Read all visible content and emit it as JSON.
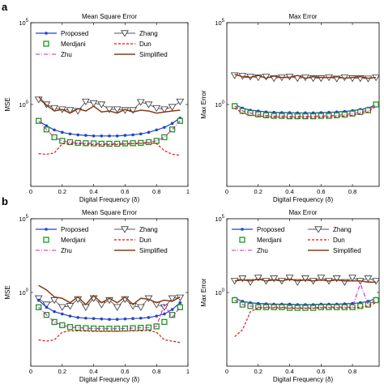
{
  "panel_labels": [
    "a",
    "b"
  ],
  "colors": {
    "proposed": "#2343c6",
    "zhang": "#555555",
    "merdjani": "#1a9a1a",
    "dun": "#e01010",
    "zhu": "#d020d0",
    "simplified": "#8b3a14"
  },
  "chart_data": [
    {
      "type": "line",
      "title": "Mean Square Error",
      "xlabel": "Digital Frequency (δ)",
      "ylabel": "MSE",
      "yscale": "log",
      "xlim": [
        0,
        1
      ],
      "ylim": [
        1e-05,
        100000.0
      ],
      "xticks": [
        "0",
        "0.2",
        "0.4",
        "0.6",
        "0.8",
        "1"
      ],
      "yticks": [
        "10^0",
        "10^5"
      ],
      "legend": [
        "Proposed",
        "Zhang",
        "Merdjani",
        "Dun",
        "Zhu",
        "Simplified"
      ],
      "legend_position": "top",
      "grid": false,
      "x": [
        0.05,
        0.1,
        0.15,
        0.2,
        0.25,
        0.3,
        0.35,
        0.4,
        0.45,
        0.5,
        0.55,
        0.6,
        0.65,
        0.7,
        0.75,
        0.8,
        0.85,
        0.9,
        0.95
      ],
      "series": [
        {
          "name": "Zhang",
          "values": [
            2.0,
            1.0,
            0.6,
            0.5,
            0.45,
            0.4,
            1.5,
            1.2,
            1.0,
            0.5,
            0.5,
            0.45,
            0.45,
            1.4,
            1.0,
            0.6,
            0.5,
            0.7,
            1.5
          ]
        },
        {
          "name": "Simplified",
          "values": [
            3.0,
            0.9,
            0.4,
            0.5,
            0.3,
            0.55,
            0.4,
            0.8,
            0.35,
            0.4,
            0.3,
            0.5,
            0.35,
            0.45,
            0.4,
            0.3,
            0.35,
            0.4,
            0.45
          ]
        },
        {
          "name": "Proposed",
          "values": [
            0.1,
            0.05,
            0.028,
            0.02,
            0.016,
            0.014,
            0.013,
            0.012,
            0.012,
            0.012,
            0.012,
            0.013,
            0.014,
            0.016,
            0.02,
            0.028,
            0.04,
            0.07,
            0.15
          ]
        },
        {
          "name": "Merdjani",
          "values": [
            0.1,
            0.03,
            0.01,
            0.006,
            0.005,
            0.0045,
            0.0043,
            0.0042,
            0.004,
            0.004,
            0.004,
            0.0042,
            0.0043,
            0.0045,
            0.005,
            0.006,
            0.01,
            0.03,
            0.1
          ]
        },
        {
          "name": "Zhu",
          "values": [
            0.1,
            0.03,
            0.01,
            0.006,
            0.005,
            0.0045,
            0.0043,
            0.0042,
            0.004,
            0.004,
            0.004,
            0.0042,
            0.0043,
            0.0045,
            0.005,
            0.006,
            0.01,
            0.03,
            0.1
          ]
        },
        {
          "name": "Dun",
          "values": [
            0.001,
            0.0009,
            0.0011,
            0.004,
            0.004,
            0.004,
            0.0038,
            0.0036,
            0.0035,
            0.0035,
            0.0036,
            0.0038,
            0.004,
            0.0042,
            0.0045,
            0.004,
            0.0015,
            0.0009,
            0.0008
          ]
        }
      ]
    },
    {
      "type": "line",
      "title": "Max Error",
      "xlabel": "Digital Frequency (δ)",
      "ylabel": "Max Error",
      "yscale": "log",
      "xlim": [
        0,
        1
      ],
      "ylim": [
        1e-05,
        100000.0
      ],
      "xticks": [
        "0",
        "0.2",
        "0.4",
        "0.6",
        "0.8"
      ],
      "yticks": [
        "10^0",
        "10^5"
      ],
      "legend": [],
      "grid": false,
      "x": [
        0.05,
        0.1,
        0.15,
        0.2,
        0.25,
        0.3,
        0.35,
        0.4,
        0.45,
        0.5,
        0.55,
        0.6,
        0.65,
        0.7,
        0.75,
        0.8,
        0.85,
        0.9,
        0.95
      ],
      "series": [
        {
          "name": "Zhang",
          "values": [
            60,
            55,
            50,
            45,
            50,
            40,
            45,
            50,
            40,
            45,
            40,
            40,
            45,
            38,
            45,
            40,
            40,
            38,
            45
          ]
        },
        {
          "name": "Simplified",
          "values": [
            70,
            50,
            45,
            60,
            40,
            55,
            45,
            45,
            60,
            40,
            50,
            45,
            45,
            50,
            40,
            45,
            50,
            40,
            45
          ]
        },
        {
          "name": "Proposed",
          "values": [
            1.0,
            0.6,
            0.45,
            0.4,
            0.35,
            0.33,
            0.32,
            0.32,
            0.31,
            0.31,
            0.31,
            0.32,
            0.33,
            0.35,
            0.38,
            0.42,
            0.5,
            0.6,
            1.0
          ]
        },
        {
          "name": "Merdjani",
          "values": [
            0.8,
            0.4,
            0.3,
            0.25,
            0.22,
            0.2,
            0.2,
            0.19,
            0.19,
            0.19,
            0.19,
            0.2,
            0.2,
            0.22,
            0.24,
            0.28,
            0.35,
            0.45,
            1.0
          ]
        },
        {
          "name": "Zhu",
          "values": [
            0.8,
            0.4,
            0.3,
            0.25,
            0.22,
            0.2,
            0.2,
            0.19,
            0.19,
            0.19,
            0.19,
            0.2,
            0.2,
            0.22,
            0.24,
            0.28,
            0.35,
            0.45,
            1.0
          ]
        },
        {
          "name": "Dun",
          "values": [
            0.6,
            0.3,
            0.22,
            0.2,
            0.18,
            0.17,
            0.17,
            0.16,
            0.16,
            0.16,
            0.16,
            0.17,
            0.17,
            0.18,
            0.2,
            0.22,
            0.28,
            0.35,
            0.8
          ]
        }
      ]
    },
    {
      "type": "line",
      "title": "Mean Square Error",
      "xlabel": "Digital Frequency (δ)",
      "ylabel": "MSE",
      "yscale": "log",
      "xlim": [
        0,
        1
      ],
      "ylim": [
        1e-05,
        100000.0
      ],
      "xticks": [
        "0",
        "0.2",
        "0.4",
        "0.6",
        "0.8",
        "1"
      ],
      "yticks": [
        "10^0",
        "10^5"
      ],
      "legend": [
        "Proposed",
        "Zhang",
        "Merdjani",
        "Dun",
        "Zhu",
        "Simplified"
      ],
      "legend_position": "top",
      "grid": false,
      "x": [
        0.05,
        0.1,
        0.15,
        0.2,
        0.25,
        0.3,
        0.35,
        0.4,
        0.45,
        0.5,
        0.55,
        0.6,
        0.65,
        0.7,
        0.75,
        0.8,
        0.85,
        0.9,
        0.95
      ],
      "series": [
        {
          "name": "Zhang",
          "values": [
            0.4,
            0.15,
            0.3,
            0.1,
            0.12,
            0.35,
            0.1,
            0.4,
            0.15,
            0.3,
            0.1,
            0.35,
            0.12,
            0.1,
            0.4,
            0.15,
            0.1,
            0.4,
            0.45
          ]
        },
        {
          "name": "Simplified",
          "values": [
            3.0,
            1.5,
            0.5,
            0.4,
            0.2,
            0.5,
            0.15,
            0.6,
            0.2,
            0.4,
            0.2,
            0.5,
            0.15,
            0.4,
            0.35,
            0.2,
            0.3,
            0.25,
            0.5
          ]
        },
        {
          "name": "Proposed",
          "values": [
            0.3,
            0.1,
            0.05,
            0.035,
            0.025,
            0.02,
            0.018,
            0.017,
            0.016,
            0.015,
            0.015,
            0.016,
            0.017,
            0.018,
            0.02,
            0.025,
            0.035,
            0.07,
            0.2
          ]
        },
        {
          "name": "Merdjani",
          "values": [
            0.1,
            0.03,
            0.01,
            0.006,
            0.0045,
            0.004,
            0.0038,
            0.0036,
            0.0035,
            0.0035,
            0.0035,
            0.0036,
            0.0038,
            0.004,
            0.0042,
            0.005,
            0.01,
            0.03,
            0.1
          ]
        },
        {
          "name": "Zhu",
          "values": [
            0.1,
            0.03,
            0.01,
            0.006,
            0.0045,
            0.004,
            0.0038,
            0.0036,
            0.0035,
            0.0035,
            0.0035,
            0.0036,
            0.0038,
            0.004,
            0.0042,
            0.005,
            0.15,
            0.02,
            0.1
          ]
        },
        {
          "name": "Dun",
          "values": [
            0.0006,
            0.0005,
            0.0006,
            0.002,
            0.0025,
            0.0025,
            0.0024,
            0.0023,
            0.0023,
            0.0023,
            0.0023,
            0.0024,
            0.0025,
            0.0025,
            0.0026,
            0.002,
            0.0006,
            0.0005,
            0.0004
          ]
        }
      ]
    },
    {
      "type": "line",
      "title": "Max Error",
      "xlabel": "Digital Frequency (δ)",
      "ylabel": "Max Error",
      "yscale": "log",
      "xlim": [
        0,
        1
      ],
      "ylim": [
        1e-05,
        100000.0
      ],
      "xticks": [
        "0",
        "0.2",
        "0.4",
        "0.6",
        "0.8"
      ],
      "yticks": [
        "10^0",
        "10^5"
      ],
      "legend": [
        "Proposed",
        "Zhang",
        "Merdjani",
        "Dun",
        "Zhu",
        "Simplified"
      ],
      "legend_position": "top",
      "grid": false,
      "x": [
        0.05,
        0.1,
        0.15,
        0.2,
        0.25,
        0.3,
        0.35,
        0.4,
        0.45,
        0.5,
        0.55,
        0.6,
        0.65,
        0.7,
        0.75,
        0.8,
        0.85,
        0.9,
        0.95
      ],
      "series": [
        {
          "name": "Zhang",
          "values": [
            6,
            9,
            5,
            10,
            6,
            9,
            6,
            10,
            5,
            9,
            6,
            10,
            6,
            9,
            5,
            10,
            6,
            9,
            6
          ]
        },
        {
          "name": "Simplified",
          "values": [
            6,
            7,
            6,
            8,
            6,
            7,
            6,
            8,
            6,
            7,
            6,
            7,
            6,
            7,
            6,
            6,
            6,
            5,
            5
          ]
        },
        {
          "name": "Proposed",
          "values": [
            0.4,
            0.25,
            0.2,
            0.18,
            0.17,
            0.16,
            0.16,
            0.16,
            0.15,
            0.15,
            0.15,
            0.16,
            0.16,
            0.16,
            0.17,
            0.18,
            0.2,
            0.25,
            0.4
          ]
        },
        {
          "name": "Merdjani",
          "values": [
            0.3,
            0.15,
            0.12,
            0.1,
            0.1,
            0.1,
            0.1,
            0.09,
            0.09,
            0.09,
            0.09,
            0.1,
            0.1,
            0.1,
            0.1,
            0.1,
            0.12,
            0.15,
            0.3
          ]
        },
        {
          "name": "Zhu",
          "values": [
            0.3,
            0.15,
            0.12,
            0.1,
            0.1,
            0.1,
            0.1,
            0.09,
            0.09,
            0.09,
            0.09,
            0.1,
            0.1,
            0.1,
            0.1,
            0.1,
            4.0,
            0.15,
            0.3
          ]
        },
        {
          "name": "Dun",
          "values": [
            0.001,
            0.003,
            0.05,
            0.09,
            0.09,
            0.09,
            0.09,
            0.085,
            0.085,
            0.085,
            0.085,
            0.09,
            0.09,
            0.09,
            0.09,
            0.09,
            0.1,
            0.12,
            0.2
          ]
        }
      ]
    }
  ]
}
